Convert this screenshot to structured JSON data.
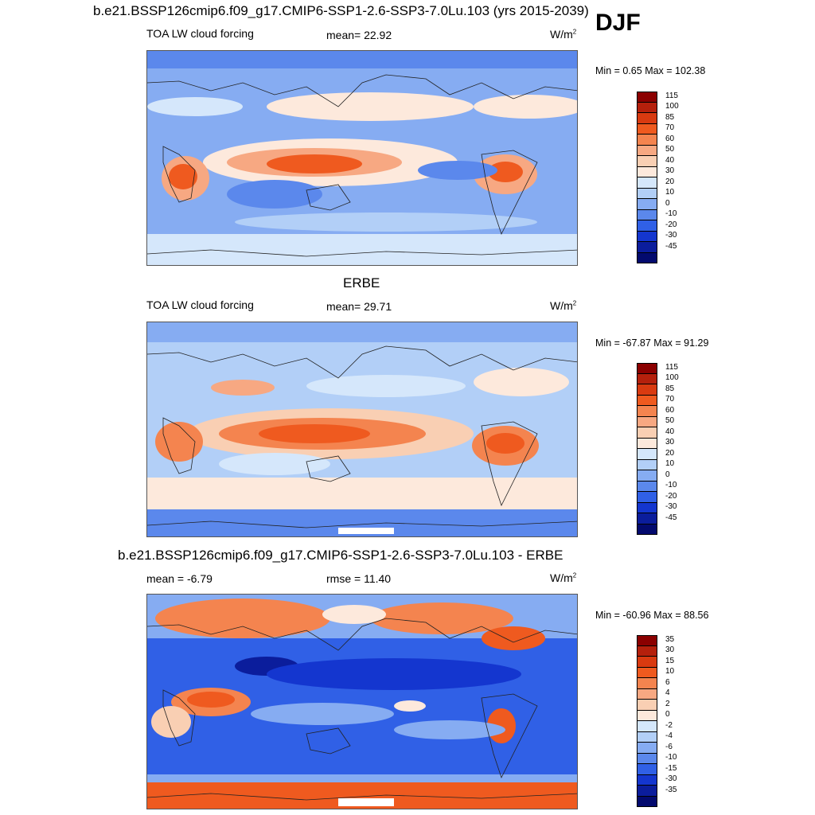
{
  "season": "DJF",
  "panels": [
    {
      "title": "b.e21.BSSP126cmip6.f09_g17.CMIP6-SSP1-2.6-SSP3-7.0Lu.103 (yrs 2015-2039)",
      "left_label": "TOA LW cloud forcing",
      "center_label": "mean=  22.92",
      "units": "W/m",
      "units_sup": "2",
      "minmax": "Min =   0.65 Max = 102.38",
      "levels": [
        "115",
        "100",
        "85",
        "70",
        "60",
        "50",
        "40",
        "30",
        "20",
        "10",
        "0",
        "-10",
        "-20",
        "-30",
        "-45"
      ],
      "colors": [
        "#8b0000",
        "#b5200c",
        "#d93a10",
        "#ef5a1f",
        "#f4844f",
        "#f7a882",
        "#f9cfb3",
        "#fde9dc",
        "#d5e7fb",
        "#b2cff7",
        "#86acf2",
        "#5b88ec",
        "#3060e6",
        "#1436cf",
        "#0b1d9c",
        "#030a6e"
      ]
    },
    {
      "title": "ERBE",
      "left_label": "TOA LW cloud forcing",
      "center_label": "mean=  29.71",
      "units": "W/m",
      "units_sup": "2",
      "minmax": "Min = -67.87 Max =  91.29",
      "levels": [
        "115",
        "100",
        "85",
        "70",
        "60",
        "50",
        "40",
        "30",
        "20",
        "10",
        "0",
        "-10",
        "-20",
        "-30",
        "-45"
      ],
      "colors": [
        "#8b0000",
        "#b5200c",
        "#d93a10",
        "#ef5a1f",
        "#f4844f",
        "#f7a882",
        "#f9cfb3",
        "#fde9dc",
        "#d5e7fb",
        "#b2cff7",
        "#86acf2",
        "#5b88ec",
        "#3060e6",
        "#1436cf",
        "#0b1d9c",
        "#030a6e"
      ]
    },
    {
      "title": "b.e21.BSSP126cmip6.f09_g17.CMIP6-SSP1-2.6-SSP3-7.0Lu.103 - ERBE",
      "left_label": "mean =  -6.79",
      "center_label": "rmse =  11.40",
      "units": "W/m",
      "units_sup": "2",
      "minmax": "Min = -60.96 Max =  88.56",
      "levels": [
        "35",
        "30",
        "15",
        "10",
        "6",
        "4",
        "2",
        "0",
        "-2",
        "-4",
        "-6",
        "-10",
        "-15",
        "-30",
        "-35"
      ],
      "colors": [
        "#8b0000",
        "#b5200c",
        "#d93a10",
        "#ef5a1f",
        "#f4844f",
        "#f7a882",
        "#f9cfb3",
        "#fde9dc",
        "#d5e7fb",
        "#b2cff7",
        "#86acf2",
        "#5b88ec",
        "#3060e6",
        "#1436cf",
        "#0b1d9c",
        "#030a6e"
      ]
    }
  ]
}
